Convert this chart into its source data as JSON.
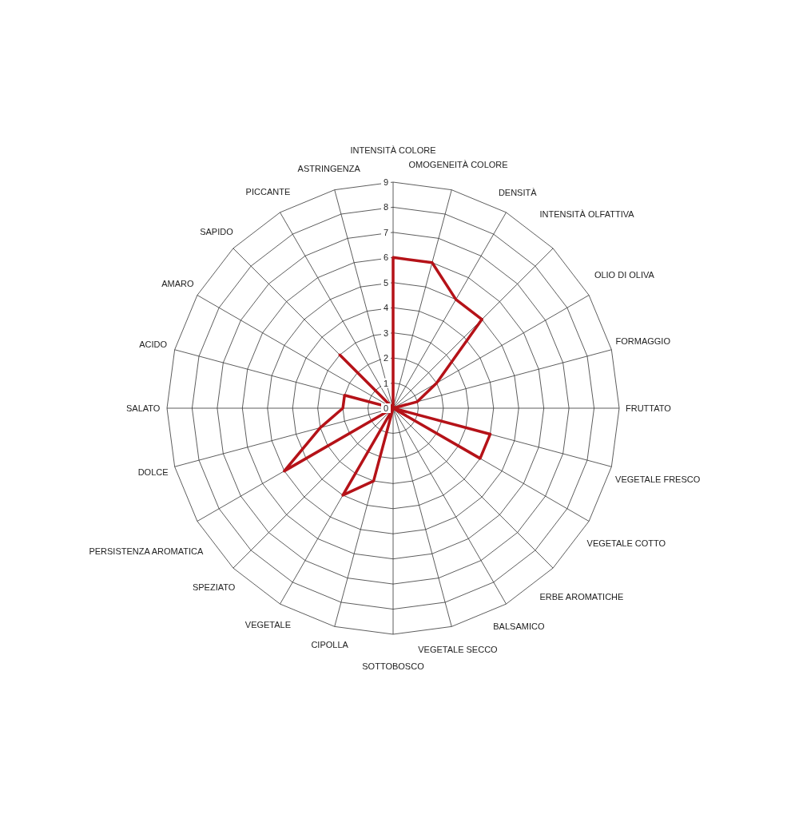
{
  "chart_data": {
    "type": "radar",
    "categories": [
      "INTENSITÀ COLORE",
      "OMOGENEITÀ COLORE",
      "DENSITÀ",
      "INTENSITÀ OLFATTIVA",
      "OLIO DI OLIVA",
      "FORMAGGIO",
      "FRUTTATO",
      "VEGETALE FRESCO",
      "VEGETALE COTTO",
      "ERBE AROMATICHE",
      "BALSAMICO",
      "VEGETALE SECCO",
      "SOTTOBOSCO",
      "CIPOLLA",
      "VEGETALE",
      "SPEZIATO",
      "PERSISTENZA AROMATICA",
      "DOLCE",
      "SALATO",
      "ACIDO",
      "AMARO",
      "SAPIDO",
      "PICCANTE",
      "ASTRINGENZA"
    ],
    "series": [
      {
        "color": "#b51218",
        "values": [
          6,
          6,
          5,
          5,
          2,
          1,
          0,
          4,
          4,
          0,
          0,
          0,
          0,
          3,
          4,
          0,
          5,
          3,
          2,
          2,
          0,
          3,
          0,
          0
        ]
      }
    ],
    "ylim": [
      0,
      9
    ],
    "yticks": [
      0,
      1,
      2,
      3,
      4,
      5,
      6,
      7,
      8,
      9
    ],
    "grid": true,
    "marker": "none",
    "line_style": "solid"
  }
}
